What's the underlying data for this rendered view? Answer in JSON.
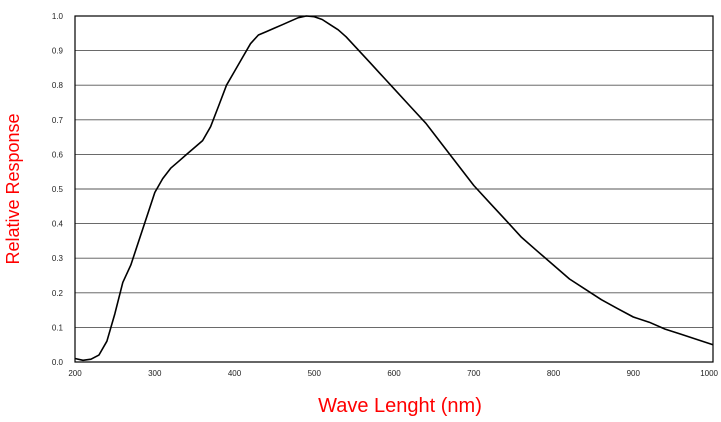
{
  "chart_data": {
    "type": "line",
    "title": "",
    "xlabel": "Wave Lenght (nm)",
    "ylabel": "Relative Response",
    "label_color": "#ff0000",
    "line_color": "#000000",
    "grid": "horizontal",
    "xlim": [
      200,
      1000
    ],
    "ylim": [
      0.0,
      1.0
    ],
    "x_ticks": [
      "200",
      "300",
      "400",
      "500",
      "600",
      "700",
      "800",
      "900",
      "1000"
    ],
    "y_ticks": [
      "0.0",
      "0.1",
      "0.2",
      "0.3",
      "0.4",
      "0.5",
      "0.6",
      "0.7",
      "0.8",
      "0.9",
      "1.0"
    ],
    "series": [
      {
        "x": [
          200,
          210,
          220,
          230,
          240,
          250,
          260,
          270,
          280,
          290,
          300,
          310,
          320,
          330,
          340,
          350,
          360,
          370,
          380,
          390,
          400,
          410,
          420,
          430,
          440,
          450,
          460,
          470,
          480,
          490,
          500,
          510,
          520,
          530,
          540,
          550,
          560,
          570,
          580,
          590,
          600,
          620,
          640,
          660,
          680,
          700,
          720,
          740,
          760,
          780,
          800,
          820,
          840,
          860,
          880,
          900,
          920,
          940,
          960,
          980,
          1000
        ],
        "y": [
          0.01,
          0.005,
          0.008,
          0.02,
          0.06,
          0.14,
          0.23,
          0.28,
          0.35,
          0.42,
          0.49,
          0.53,
          0.56,
          0.58,
          0.6,
          0.62,
          0.64,
          0.68,
          0.74,
          0.8,
          0.84,
          0.88,
          0.92,
          0.945,
          0.955,
          0.965,
          0.975,
          0.985,
          0.995,
          1.0,
          0.998,
          0.99,
          0.975,
          0.96,
          0.94,
          0.915,
          0.89,
          0.865,
          0.84,
          0.815,
          0.79,
          0.74,
          0.69,
          0.63,
          0.57,
          0.51,
          0.46,
          0.41,
          0.36,
          0.32,
          0.28,
          0.24,
          0.21,
          0.18,
          0.155,
          0.13,
          0.115,
          0.095,
          0.08,
          0.065,
          0.05
        ]
      }
    ]
  }
}
